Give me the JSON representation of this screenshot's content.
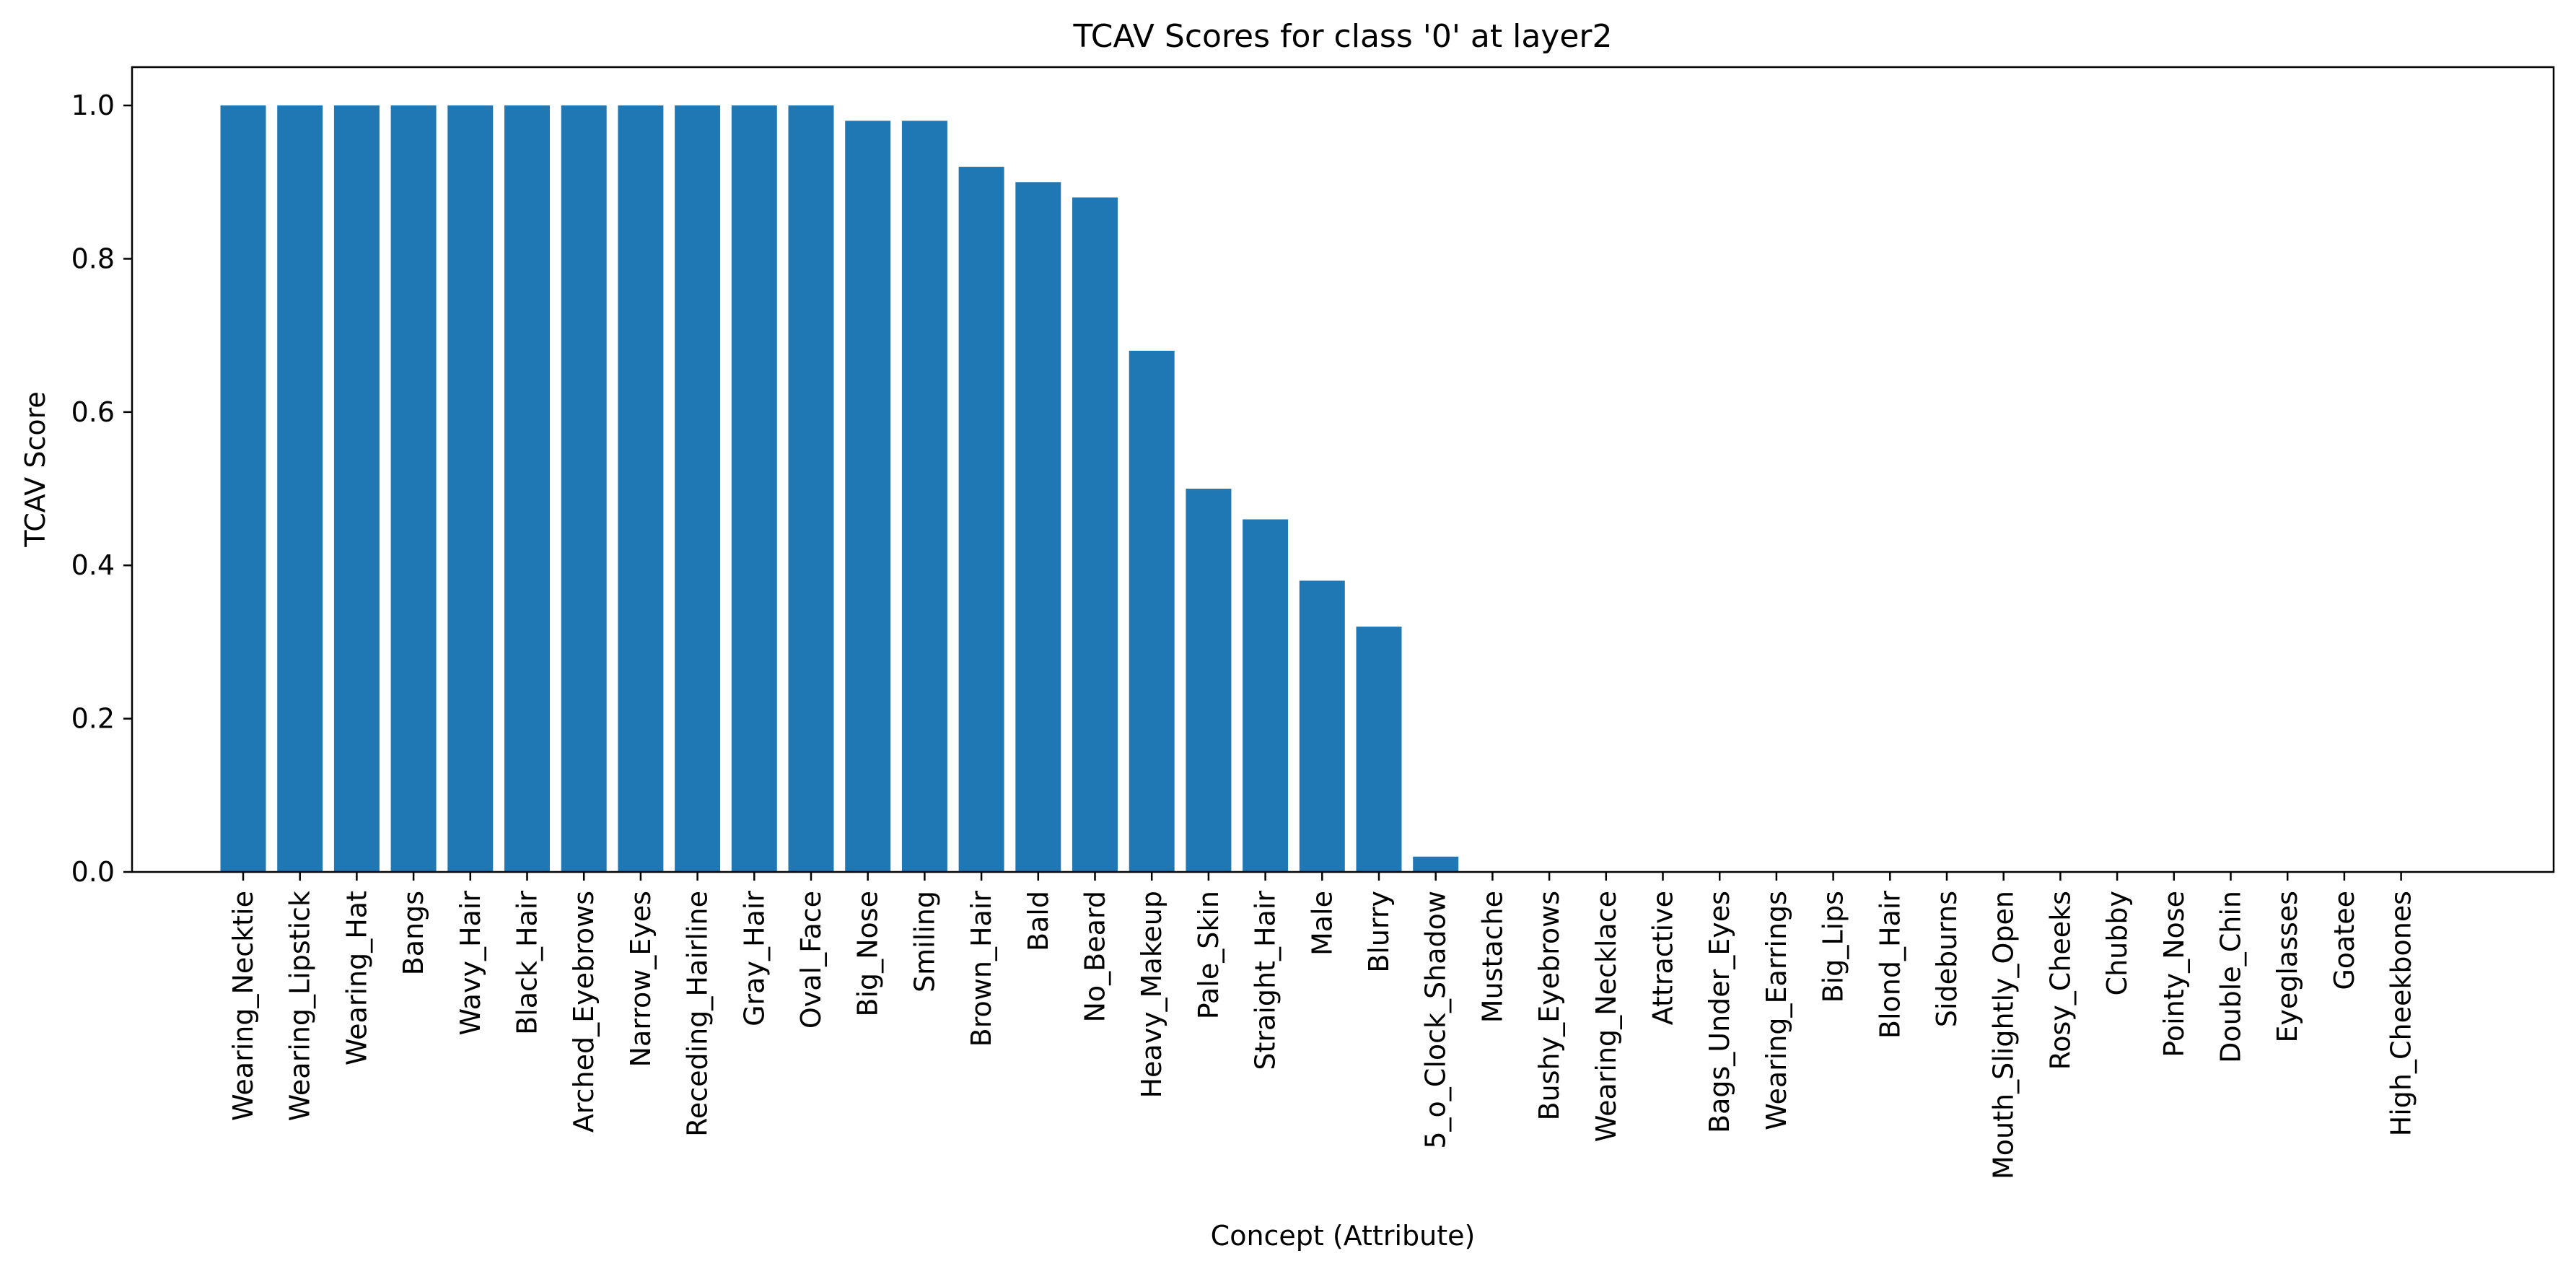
{
  "chart_data": {
    "type": "bar",
    "title": "TCAV Scores for class '0' at layer2",
    "xlabel": "Concept (Attribute)",
    "ylabel": "TCAV Score",
    "ylim": [
      0,
      1.05
    ],
    "yticks": [
      "0.0",
      "0.2",
      "0.4",
      "0.6",
      "0.8",
      "1.0"
    ],
    "grid": false,
    "bar_color": "#1f77b4",
    "categories": [
      "Wearing_Necktie",
      "Wearing_Lipstick",
      "Wearing_Hat",
      "Bangs",
      "Wavy_Hair",
      "Black_Hair",
      "Arched_Eyebrows",
      "Narrow_Eyes",
      "Receding_Hairline",
      "Gray_Hair",
      "Oval_Face",
      "Big_Nose",
      "Smiling",
      "Brown_Hair",
      "Bald",
      "No_Beard",
      "Heavy_Makeup",
      "Pale_Skin",
      "Straight_Hair",
      "Male",
      "Blurry",
      "5_o_Clock_Shadow",
      "Mustache",
      "Bushy_Eyebrows",
      "Wearing_Necklace",
      "Attractive",
      "Bags_Under_Eyes",
      "Wearing_Earrings",
      "Big_Lips",
      "Blond_Hair",
      "Sideburns",
      "Mouth_Slightly_Open",
      "Rosy_Cheeks",
      "Chubby",
      "Pointy_Nose",
      "Double_Chin",
      "Eyeglasses",
      "Goatee",
      "High_Cheekbones"
    ],
    "values": [
      1.0,
      1.0,
      1.0,
      1.0,
      1.0,
      1.0,
      1.0,
      1.0,
      1.0,
      1.0,
      1.0,
      0.98,
      0.98,
      0.92,
      0.9,
      0.88,
      0.68,
      0.5,
      0.46,
      0.38,
      0.32,
      0.02,
      0.0,
      0.0,
      0.0,
      0.0,
      0.0,
      0.0,
      0.0,
      0.0,
      0.0,
      0.0,
      0.0,
      0.0,
      0.0,
      0.0,
      0.0,
      0.0,
      0.0
    ]
  }
}
